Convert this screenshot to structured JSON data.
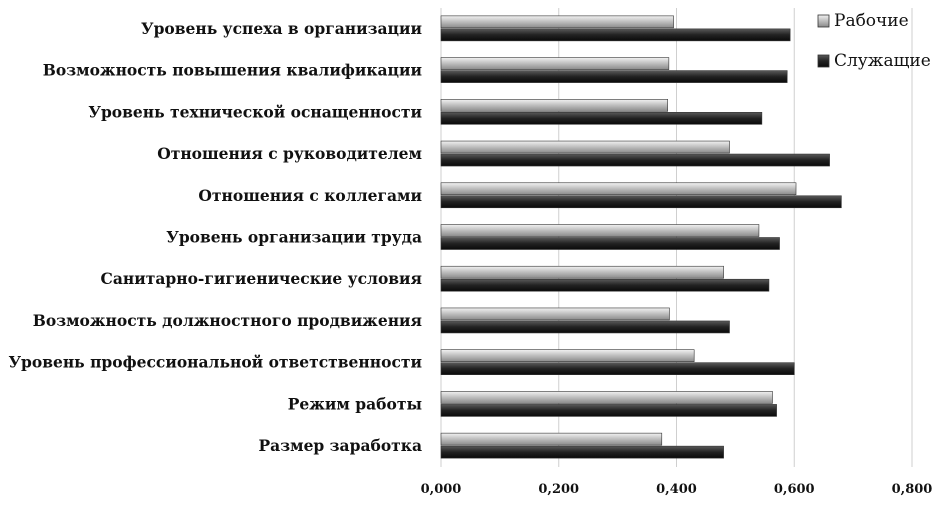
{
  "chart_data": {
    "type": "bar",
    "orientation": "horizontal",
    "categories": [
      "Уровень успеха в организации",
      "Возможность повышения квалификации",
      "Уровень технической оснащенности",
      "Отношения с руководителем",
      "Отношения с коллегами",
      "Уровень организации труда",
      "Санитарно-гигиенические условия",
      "Возможность должностного продвижения",
      "Уровень профессиональной ответственности",
      "Режим работы",
      "Размер заработка"
    ],
    "series": [
      {
        "name": "Рабочие",
        "color": "#c8c8c8",
        "values": [
          0.395,
          0.387,
          0.385,
          0.49,
          0.603,
          0.54,
          0.48,
          0.388,
          0.43,
          0.563,
          0.375
        ]
      },
      {
        "name": "Служащие",
        "color": "#2a2a2a",
        "values": [
          0.593,
          0.588,
          0.545,
          0.66,
          0.68,
          0.575,
          0.557,
          0.49,
          0.6,
          0.57,
          0.48
        ]
      }
    ],
    "x_ticks": [
      "0,000",
      "0,200",
      "0,400",
      "0,600",
      "0,800"
    ],
    "x_tick_values": [
      0,
      0.2,
      0.4,
      0.6,
      0.8
    ],
    "xlim": [
      0,
      0.8
    ],
    "grid": true,
    "legend_position": "top-right"
  }
}
